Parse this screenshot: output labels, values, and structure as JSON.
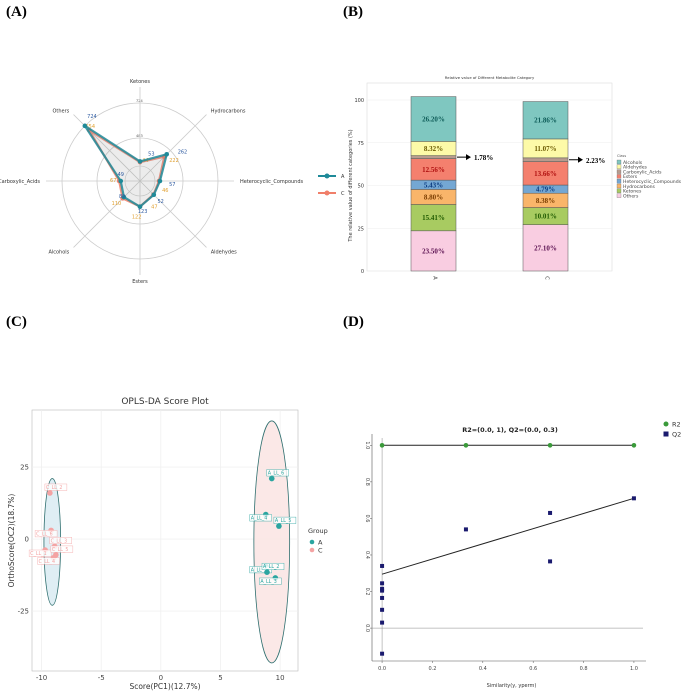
{
  "panel_labels": [
    "(A)",
    "(B)",
    "(C)",
    "(D)"
  ],
  "chart_data": [
    {
      "type": "radar",
      "categories": [
        "Ketones",
        "Hydrocarbons",
        "Heterocyclic_Compounds",
        "Aldehydes",
        "Esters",
        "Alcohols",
        "Carboxylic_Acids",
        "Others"
      ],
      "radial_ticks": [
        "483",
        "724"
      ],
      "rmax": 724,
      "series": [
        {
          "name": "A",
          "color": "#1f8a99",
          "values": [
            53,
            262,
            57,
            52,
            123,
            89,
            49,
            724
          ],
          "labels": [
            "53",
            "262",
            "57",
            "52",
            "123",
            "89",
            "49",
            "724"
          ]
        },
        {
          "name": "C",
          "color": "#f07f6a",
          "values": [
            44,
            222,
            46,
            47,
            122,
            110,
            67,
            654
          ],
          "labels": [
            "44",
            "222",
            "46",
            "47",
            "122",
            "110",
            "67",
            "654"
          ]
        }
      ],
      "legend": "right"
    },
    {
      "type": "bar",
      "stacked": true,
      "title": "Relative value of Different Metabolite Category",
      "ylabel": "The relative value of different categories (%)",
      "categories": [
        "A",
        "C"
      ],
      "ylim": [
        0,
        100
      ],
      "yticks": [
        "0",
        "25",
        "50",
        "75",
        "100"
      ],
      "legend_title": "Class",
      "legend_items": [
        "Alcohols",
        "Aldehydes",
        "Carboxylic_Acids",
        "Esters",
        "Heterocyclic_Compounds",
        "Hydrocarbons",
        "Ketones",
        "Others"
      ],
      "series": [
        {
          "name": "Others",
          "color": "#f9cde1",
          "text_color": "#5a1050",
          "values": [
            23.5,
            27.1
          ],
          "labels": [
            "23.50%",
            "27.10%"
          ]
        },
        {
          "name": "Ketones",
          "color": "#a8cb61",
          "text_color": "#1f5a00",
          "values": [
            15.41,
            10.01
          ],
          "labels": [
            "15.41%",
            "10.01%"
          ]
        },
        {
          "name": "Hydrocarbons",
          "color": "#f9b56a",
          "text_color": "#7a3d00",
          "values": [
            8.8,
            8.38
          ],
          "labels": [
            "8.80%",
            "8.38%"
          ]
        },
        {
          "name": "Heterocyclic_Compounds",
          "color": "#74a7d3",
          "text_color": "#0b3b80",
          "values": [
            5.43,
            4.79
          ],
          "labels": [
            "5.43%",
            "4.79%"
          ]
        },
        {
          "name": "Esters",
          "color": "#f4806e",
          "text_color": "#b01010",
          "values": [
            12.56,
            13.66
          ],
          "labels": [
            "12.56%",
            "13.66%"
          ]
        },
        {
          "name": "Carboxylic_Acids",
          "color": "#b79b8e",
          "text_color": "#000000",
          "values": [
            1.78,
            2.23
          ],
          "labels": [
            "1.78%",
            "2.23%"
          ]
        },
        {
          "name": "Aldehydes",
          "color": "#fdfaa8",
          "text_color": "#6b5a00",
          "values": [
            8.32,
            11.07
          ],
          "labels": [
            "8.32%",
            "11.07%"
          ]
        },
        {
          "name": "Alcohols",
          "color": "#7fc7c0",
          "text_color": "#0d5b57",
          "values": [
            26.2,
            21.86
          ],
          "labels": [
            "26.20%",
            "21.86%"
          ]
        }
      ]
    },
    {
      "type": "scatter",
      "title": "OPLS-DA Score Plot",
      "xlabel": "Score(PC1)(12.7%)",
      "ylabel": "OrthoScore(OC2)(18.7%)",
      "xticks": [
        -10,
        -5,
        0,
        5,
        10
      ],
      "yticks": [
        -25,
        0,
        25
      ],
      "xlim": [
        -10.8,
        11.5
      ],
      "ylim": [
        -45.8,
        44.8
      ],
      "grid": true,
      "legend_title": "Group",
      "legend": "right",
      "series": [
        {
          "name": "A",
          "color": "#2aa5a0",
          "ellipse_fill": "#fbe6e4",
          "ellipse": {
            "cx": 9.3,
            "cy": -1,
            "rx": 1.5,
            "ry": 42
          },
          "points": [
            {
              "label": "A_LL_6",
              "x": 9.3,
              "y": 21
            },
            {
              "label": "A_LL_4",
              "x": 8.8,
              "y": 8.5
            },
            {
              "label": "A_LL_5",
              "x": 9.9,
              "y": 4.5
            },
            {
              "label": "A_LL_1",
              "x": 8.8,
              "y": -9.5
            },
            {
              "label": "A_LL_2",
              "x": 8.9,
              "y": -11.5
            },
            {
              "label": "A_LL_3",
              "x": 9.6,
              "y": -13.5
            }
          ]
        },
        {
          "name": "C",
          "color": "#f4a3a3",
          "ellipse_fill": "#dcecf3",
          "ellipse": {
            "cx": -9.1,
            "cy": -1,
            "rx": 0.7,
            "ry": 22
          },
          "points": [
            {
              "label": "C_LL_2",
              "x": -9.3,
              "y": 16
            },
            {
              "label": "C_LL_6",
              "x": -9.2,
              "y": 3
            },
            {
              "label": "C_LL_3",
              "x": -8.9,
              "y": -2.5
            },
            {
              "label": "C_LL_1",
              "x": -9.7,
              "y": -3.8
            },
            {
              "label": "C_LL_5",
              "x": -8.8,
              "y": -5.5
            },
            {
              "label": "C_LL_4",
              "x": -9.0,
              "y": -6.5
            }
          ]
        }
      ]
    },
    {
      "type": "scatter",
      "title": "R2=(0.0, 1), Q2=(0.0, 0.3)",
      "xlabel": "Similarity(y, yperm)",
      "xticks": [
        "0.0",
        "0.2",
        "0.4",
        "0.6",
        "0.8",
        "1.0"
      ],
      "yticks": [
        "0.0",
        "0.2",
        "0.4",
        "0.6",
        "0.8",
        "1.0"
      ],
      "xlim": [
        -0.04,
        1.036
      ],
      "ylim": [
        -0.18,
        1.04
      ],
      "legend": "top-right",
      "series": [
        {
          "name": "R2",
          "color": "#3a9a3a",
          "marker": "circle",
          "x": [
            0,
            0.333,
            0.667,
            1.0
          ],
          "y": [
            1.0,
            1.0,
            1.0,
            1.0
          ],
          "regression": [
            1.0,
            1.0
          ]
        },
        {
          "name": "Q2",
          "color": "#1a1a6e",
          "marker": "square",
          "x": [
            0,
            0,
            0,
            0,
            0,
            0,
            0,
            0,
            0.333,
            0.667,
            0.667,
            1.0
          ],
          "y": [
            0.34,
            0.245,
            0.215,
            0.205,
            0.165,
            0.1,
            0.03,
            -0.14,
            0.54,
            0.63,
            0.365,
            0.71
          ],
          "regression": [
            0.295,
            0.71
          ]
        }
      ]
    }
  ]
}
